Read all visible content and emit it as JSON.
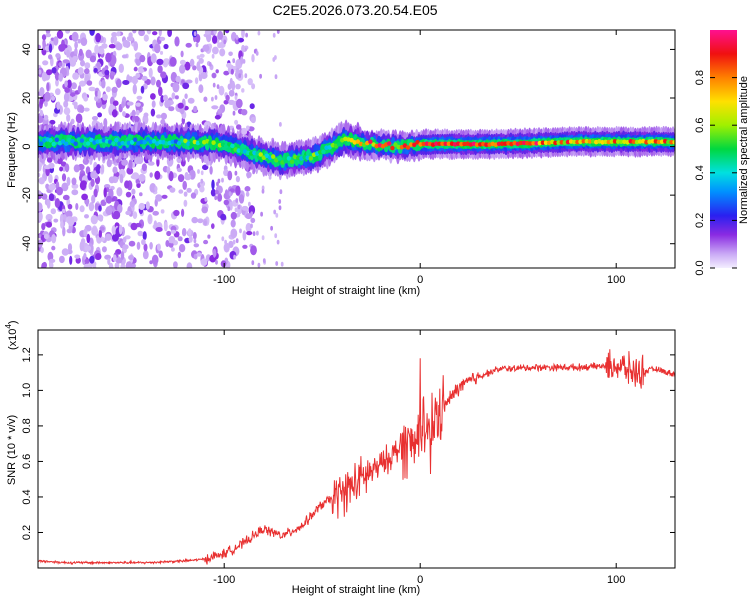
{
  "title": "C2E5.2026.073.20.54.E05",
  "chart_data": [
    {
      "type": "heatmap",
      "xlabel": "Height of straight line (km)",
      "ylabel": "Frequency (Hz)",
      "xlim": [
        -195,
        130
      ],
      "ylim": [
        -50,
        48
      ],
      "xticks": [
        -100,
        0,
        100
      ],
      "yticks": [
        40,
        20,
        0,
        -20,
        -40
      ],
      "colorbar": {
        "label": "Normalized spectral amplitude",
        "range": [
          0.0,
          1.0
        ],
        "ticks": [
          0.0,
          0.2,
          0.4,
          0.6,
          0.8
        ]
      },
      "ridge": {
        "description_points_km_hz": [
          [
            -195,
            2
          ],
          [
            -120,
            2
          ],
          [
            -100,
            1
          ],
          [
            -85,
            -3
          ],
          [
            -70,
            -6
          ],
          [
            -55,
            -4
          ],
          [
            -45,
            0
          ],
          [
            -38,
            3
          ],
          [
            -25,
            1
          ],
          [
            -10,
            0
          ],
          [
            0,
            1
          ],
          [
            40,
            1
          ],
          [
            80,
            2
          ],
          [
            100,
            2
          ],
          [
            130,
            2
          ]
        ]
      }
    },
    {
      "type": "line",
      "xlabel": "Height of straight line (km)",
      "ylabel": "SNR (10 * v/v)",
      "scale_label": "(x10",
      "scale_exp": "4",
      "scale_close": ")",
      "xlim": [
        -195,
        130
      ],
      "ylim": [
        0.0,
        1.34
      ],
      "xticks": [
        -100,
        0,
        100
      ],
      "yticks": [
        0.2,
        0.4,
        0.6,
        0.8,
        1.0,
        1.2
      ],
      "color": "#e83030",
      "series": [
        {
          "name": "SNR",
          "x": [
            -195,
            -180,
            -160,
            -140,
            -120,
            -110,
            -100,
            -90,
            -80,
            -70,
            -60,
            -50,
            -40,
            -30,
            -20,
            -10,
            0,
            10,
            20,
            30,
            40,
            60,
            80,
            100,
            110,
            120,
            130
          ],
          "y": [
            0.04,
            0.03,
            0.03,
            0.03,
            0.04,
            0.05,
            0.08,
            0.14,
            0.22,
            0.18,
            0.24,
            0.36,
            0.42,
            0.5,
            0.58,
            0.68,
            0.72,
            0.88,
            1.02,
            1.08,
            1.12,
            1.13,
            1.13,
            1.14,
            1.1,
            1.12,
            1.09
          ]
        }
      ]
    }
  ]
}
